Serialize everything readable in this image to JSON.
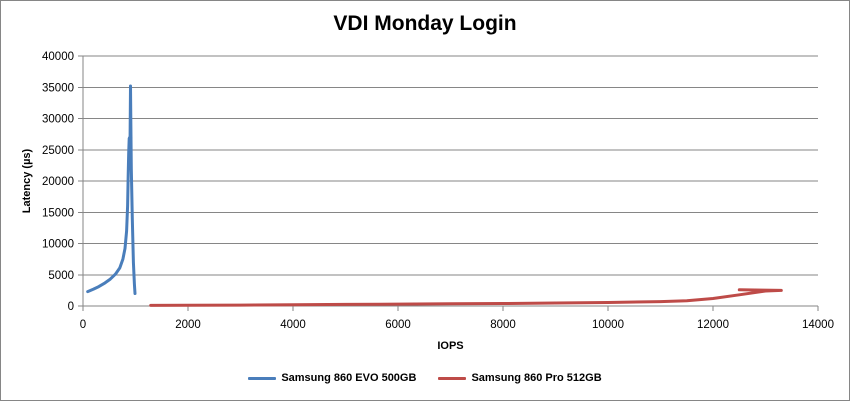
{
  "chart_data": {
    "type": "line",
    "title": "VDI Monday Login",
    "xlabel": "IOPS",
    "ylabel": "Latency (µs)",
    "xlim": [
      0,
      14000
    ],
    "ylim": [
      0,
      40000
    ],
    "x_ticks": [
      "0",
      "2000",
      "4000",
      "6000",
      "8000",
      "10000",
      "12000",
      "14000"
    ],
    "y_ticks": [
      "0",
      "5000",
      "10000",
      "15000",
      "20000",
      "25000",
      "30000",
      "35000",
      "40000"
    ],
    "grid": "horizontal",
    "legend_position": "bottom",
    "series": [
      {
        "name": "Samsung 860 EVO 500GB",
        "color": "#4a7ebb",
        "points": [
          [
            90,
            2300
          ],
          [
            200,
            2700
          ],
          [
            300,
            3100
          ],
          [
            420,
            3700
          ],
          [
            520,
            4300
          ],
          [
            620,
            5100
          ],
          [
            700,
            6100
          ],
          [
            760,
            7500
          ],
          [
            800,
            9200
          ],
          [
            830,
            12000
          ],
          [
            850,
            16000
          ],
          [
            860,
            21000
          ],
          [
            870,
            24500
          ],
          [
            880,
            26800
          ],
          [
            890,
            27000
          ],
          [
            895,
            25500
          ],
          [
            900,
            31000
          ],
          [
            905,
            35200
          ],
          [
            910,
            30000
          ],
          [
            920,
            22000
          ],
          [
            940,
            14000
          ],
          [
            960,
            7000
          ],
          [
            980,
            3500
          ],
          [
            990,
            2000
          ]
        ]
      },
      {
        "name": "Samsung 860 Pro 512GB",
        "color": "#be4b48",
        "points": [
          [
            1290,
            100
          ],
          [
            2000,
            120
          ],
          [
            3000,
            150
          ],
          [
            4000,
            200
          ],
          [
            5000,
            250
          ],
          [
            6000,
            300
          ],
          [
            7000,
            350
          ],
          [
            8000,
            400
          ],
          [
            9000,
            480
          ],
          [
            10000,
            560
          ],
          [
            11000,
            700
          ],
          [
            11500,
            850
          ],
          [
            12000,
            1200
          ],
          [
            12500,
            1800
          ],
          [
            13000,
            2400
          ],
          [
            13300,
            2500
          ],
          [
            12950,
            2550
          ],
          [
            12500,
            2600
          ]
        ]
      }
    ]
  }
}
